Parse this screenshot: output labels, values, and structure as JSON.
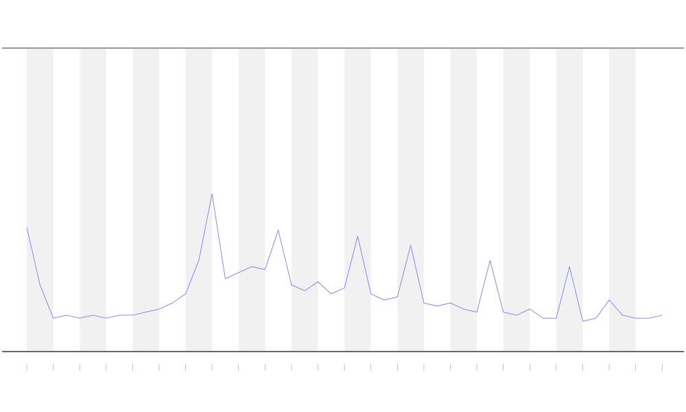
{
  "chart_data": {
    "type": "line",
    "x": [
      0,
      0.5,
      1,
      1.5,
      2,
      2.5,
      3,
      3.5,
      4,
      4.5,
      5,
      5.5,
      6,
      6.5,
      7,
      7.5,
      8,
      8.5,
      9,
      9.5,
      10,
      10.5,
      11,
      11.5,
      12,
      12.5,
      13,
      13.5,
      14,
      14.5,
      15,
      15.5,
      16,
      16.5,
      17,
      17.5,
      18,
      18.5,
      19,
      19.5,
      20,
      20.5,
      21,
      21.5,
      22,
      22.5,
      23,
      23.5,
      24
    ],
    "series": [
      {
        "color": "#6b6bff",
        "values": [
          41,
          22,
          11,
          12,
          11,
          12,
          11,
          12,
          12,
          13,
          14,
          16,
          19,
          30,
          52,
          24,
          26,
          28,
          27,
          40,
          22,
          20,
          23,
          19,
          21,
          38,
          19,
          17,
          18,
          35,
          16,
          15,
          16,
          14,
          13,
          30,
          13,
          12,
          14,
          11,
          11,
          28,
          10,
          11,
          17,
          12,
          11,
          11,
          12
        ]
      }
    ],
    "xlim": [
      -1.01,
      24.9
    ],
    "ylim": [
      0,
      100
    ],
    "xticks": [
      0,
      1,
      2,
      3,
      4,
      5,
      6,
      7,
      8,
      9,
      10,
      11,
      12,
      13,
      14,
      15,
      16,
      17,
      18,
      19,
      20,
      21,
      22,
      23,
      24
    ]
  }
}
